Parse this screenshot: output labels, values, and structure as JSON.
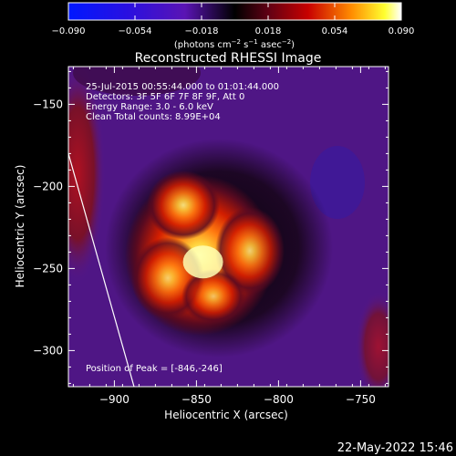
{
  "title": "Reconstructed RHESSI Image",
  "timestamp": "22-May-2022 15:46",
  "colorbar": {
    "unit_label_parts": [
      "(photons cm",
      "−2",
      " s",
      "−1",
      " asec",
      "−2",
      ")"
    ],
    "tick_labels": [
      "−0.090",
      "−0.054",
      "−0.018",
      "0.018",
      "0.054",
      "0.090"
    ],
    "ticks": [
      -0.09,
      -0.054,
      -0.018,
      0.018,
      0.054,
      0.09
    ],
    "range": [
      -0.09,
      0.09
    ]
  },
  "annotations": {
    "lines": [
      "25-Jul-2015 00:55:44.000 to 01:01:44.000",
      "Detectors: 3F 5F 6F 7F 8F 9F, Att 0",
      "Energy Range: 3.0 - 6.0 keV",
      "Clean     Total counts: 8.99E+04"
    ],
    "peak": "Position of Peak = [-846,-246]"
  },
  "chart_data": {
    "type": "heatmap",
    "title": "Reconstructed RHESSI Image",
    "xlabel": "Heliocentric X (arcsec)",
    "ylabel": "Heliocentric Y (arcsec)",
    "xlim": [
      -928,
      -733
    ],
    "ylim": [
      -322,
      -127
    ],
    "xticks": [
      -900,
      -850,
      -800,
      -750
    ],
    "yticks": [
      -300,
      -250,
      -200,
      -150
    ],
    "xtick_labels": [
      "−900",
      "−850",
      "−800",
      "−750"
    ],
    "ytick_labels": [
      "−300",
      "−250",
      "−200",
      "−150"
    ],
    "peak_position": [
      -846,
      -246
    ],
    "source_centroid": [
      -848,
      -242
    ],
    "limb_line": [
      [
        -928,
        -180
      ],
      [
        -888,
        -322
      ]
    ],
    "grid": false
  }
}
